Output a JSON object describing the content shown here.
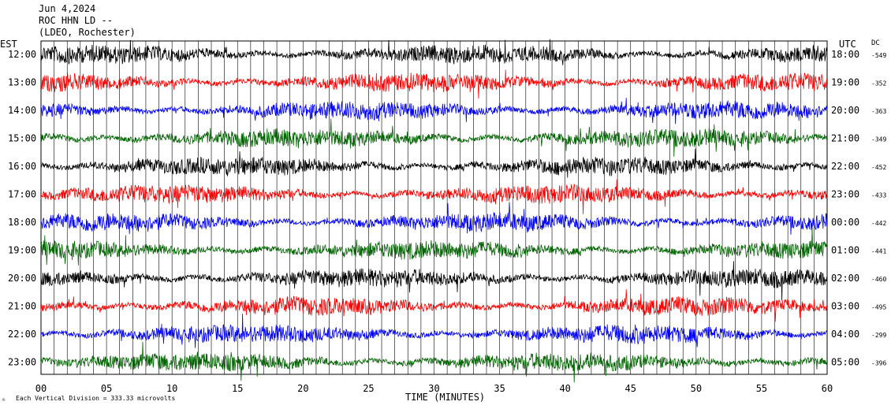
{
  "header": {
    "date": "Jun 4,2024",
    "station": "ROC HHN LD --",
    "network": "(LDEO, Rochester)"
  },
  "axis_labels": {
    "left_timezone": "EST",
    "right_timezone": "UTC",
    "dc_header": "DC",
    "x_axis_title": "TIME (MINUTES)",
    "footer": "Each Vertical Division =  333.33 microvolts",
    "footer_mark": "☼"
  },
  "colors": {
    "trace_cycle": [
      "#000000",
      "#ff0000",
      "#0000ff",
      "#006400"
    ],
    "gridline": "#000000",
    "background": "#ffffff"
  },
  "chart_data": {
    "type": "line",
    "subtype": "helicorder-seismogram",
    "x_unit": "minutes",
    "xlim": [
      0,
      60
    ],
    "x_ticks": [
      "00",
      "05",
      "10",
      "15",
      "20",
      "25",
      "30",
      "35",
      "40",
      "45",
      "50",
      "55",
      "60"
    ],
    "x_tick_values": [
      0,
      5,
      10,
      15,
      20,
      25,
      30,
      35,
      40,
      45,
      50,
      55,
      60
    ],
    "vertical_division_microvolts": 333.33,
    "grid": "vertical lines every minute",
    "rows": [
      {
        "est": "12:00",
        "utc": "18:00",
        "dc": "-549",
        "color": "#000000"
      },
      {
        "est": "13:00",
        "utc": "19:00",
        "dc": "-352",
        "color": "#ff0000"
      },
      {
        "est": "14:00",
        "utc": "20:00",
        "dc": "-363",
        "color": "#0000ff"
      },
      {
        "est": "15:00",
        "utc": "21:00",
        "dc": "-349",
        "color": "#006400"
      },
      {
        "est": "16:00",
        "utc": "22:00",
        "dc": "-452",
        "color": "#000000"
      },
      {
        "est": "17:00",
        "utc": "23:00",
        "dc": "-433",
        "color": "#ff0000"
      },
      {
        "est": "18:00",
        "utc": "00:00",
        "dc": "-442",
        "color": "#0000ff"
      },
      {
        "est": "19:00",
        "utc": "01:00",
        "dc": "-441",
        "color": "#006400"
      },
      {
        "est": "20:00",
        "utc": "02:00",
        "dc": "-460",
        "color": "#000000"
      },
      {
        "est": "21:00",
        "utc": "03:00",
        "dc": "-495",
        "color": "#ff0000"
      },
      {
        "est": "22:00",
        "utc": "04:00",
        "dc": "-299",
        "color": "#0000ff"
      },
      {
        "est": "23:00",
        "utc": "05:00",
        "dc": "-396",
        "color": "#006400"
      }
    ],
    "last_row_recorded_until_minute": 60
  }
}
